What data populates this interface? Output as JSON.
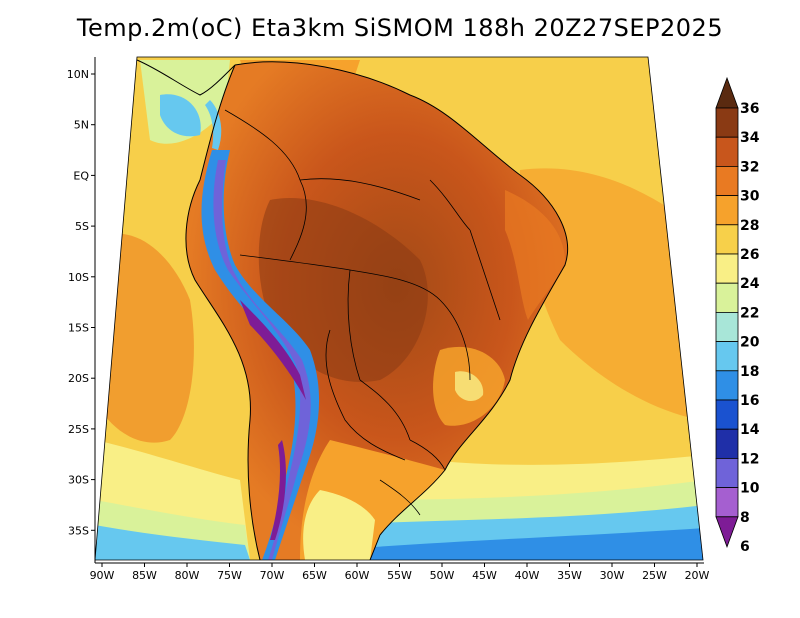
{
  "title": "Temp.2m(oC) Eta3km SiSMOM 188h 20Z27SEP2025",
  "map": {
    "lon_ticks": [
      "90W",
      "85W",
      "80W",
      "75W",
      "70W",
      "65W",
      "60W",
      "55W",
      "50W",
      "45W",
      "40W",
      "35W",
      "30W",
      "25W",
      "20W"
    ],
    "lat_ticks": [
      "10N",
      "5N",
      "EQ",
      "5S",
      "10S",
      "15S",
      "20S",
      "25S",
      "30S",
      "35S"
    ],
    "lon_range": [
      -91,
      -20
    ],
    "lat_range": [
      -38,
      11
    ]
  },
  "colorbar": {
    "levels": [
      "36",
      "34",
      "32",
      "30",
      "28",
      "26",
      "24",
      "22",
      "20",
      "18",
      "16",
      "14",
      "12",
      "10",
      "8",
      "6"
    ],
    "colors": [
      "#5a2a10",
      "#8a3a14",
      "#c8561c",
      "#e97a22",
      "#f6a22c",
      "#f7d04a",
      "#f9ef86",
      "#d9f29a",
      "#a8e6d8",
      "#66c8ef",
      "#2f8fe6",
      "#1a52d0",
      "#1f2fa8",
      "#6f63d9",
      "#a55fd0",
      "#7e1c96"
    ]
  }
}
